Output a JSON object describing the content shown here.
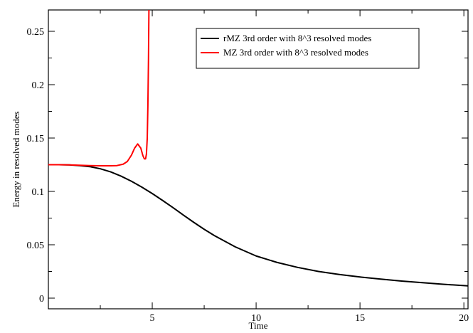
{
  "chart_data": {
    "type": "line",
    "title": "",
    "xlabel": "Time",
    "ylabel": "Energy in resolved modes",
    "xlim": [
      0,
      20.2
    ],
    "ylim": [
      -0.01,
      0.27
    ],
    "x_ticks": [
      5,
      10,
      15,
      20
    ],
    "x_tick_labels": [
      "5",
      "10",
      "15",
      "20"
    ],
    "y_ticks": [
      0,
      0.05,
      0.1,
      0.15,
      0.2,
      0.25
    ],
    "y_tick_labels": [
      "0",
      "0.05",
      "0.1",
      "0.15",
      "0.2",
      "0.25"
    ],
    "grid": false,
    "legend_position": "top-right",
    "series": [
      {
        "name": "rMZ 3rd order with 8^3 resolved modes",
        "color": "#000000",
        "x": [
          0,
          0.5,
          1,
          1.5,
          2,
          2.5,
          3,
          3.5,
          4,
          4.5,
          5,
          5.5,
          6,
          6.5,
          7,
          7.5,
          8,
          9,
          10,
          11,
          12,
          13,
          14,
          15,
          16,
          17,
          18,
          19,
          20.2
        ],
        "y": [
          0.125,
          0.125,
          0.1248,
          0.1242,
          0.1232,
          0.1212,
          0.1183,
          0.1143,
          0.1095,
          0.104,
          0.098,
          0.0915,
          0.0848,
          0.0778,
          0.071,
          0.0645,
          0.0585,
          0.048,
          0.0395,
          0.0335,
          0.0288,
          0.025,
          0.0222,
          0.0198,
          0.0178,
          0.016,
          0.0145,
          0.013,
          0.0115
        ]
      },
      {
        "name": "MZ 3rd order with 8^3 resolved modes",
        "color": "#ff0000",
        "x": [
          0,
          0.5,
          1,
          1.5,
          2,
          2.5,
          3,
          3.3,
          3.6,
          3.8,
          4.0,
          4.15,
          4.3,
          4.45,
          4.55,
          4.62,
          4.68,
          4.72,
          4.76,
          4.79,
          4.82,
          4.84
        ],
        "y": [
          0.125,
          0.125,
          0.1248,
          0.1245,
          0.1242,
          0.124,
          0.124,
          0.1242,
          0.1255,
          0.128,
          0.134,
          0.1405,
          0.1445,
          0.1405,
          0.1335,
          0.1305,
          0.1305,
          0.135,
          0.15,
          0.18,
          0.225,
          0.27
        ]
      }
    ]
  }
}
